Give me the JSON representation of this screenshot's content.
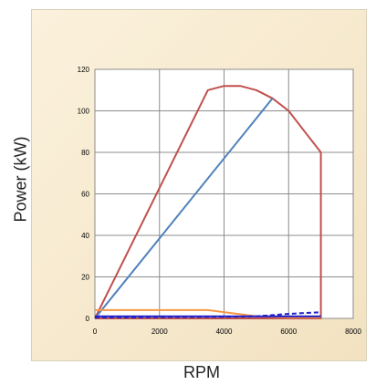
{
  "chart_data": {
    "type": "line",
    "title": "",
    "xlabel": "RPM",
    "ylabel": "Power (kW)",
    "xlim": [
      0,
      8000
    ],
    "ylim": [
      0,
      120
    ],
    "xticks": [
      0,
      2000,
      4000,
      6000,
      8000
    ],
    "yticks": [
      0,
      20,
      40,
      60,
      80,
      100,
      120
    ],
    "grid": true,
    "legend": "none",
    "series": [
      {
        "color": "#c0504d",
        "style": "solid",
        "x": [
          0,
          3500,
          4000,
          4500,
          5000,
          5500,
          6000,
          6500,
          7000,
          7000,
          0
        ],
        "y": [
          0,
          110,
          112,
          112,
          110,
          106,
          100,
          90,
          80,
          0,
          0
        ]
      },
      {
        "color": "#4f81bd",
        "style": "solid",
        "x": [
          0,
          5500
        ],
        "y": [
          0,
          106
        ]
      },
      {
        "color": "#f79646",
        "style": "solid",
        "x": [
          0,
          3500,
          4500,
          5000,
          6000,
          7000
        ],
        "y": [
          4,
          4,
          2,
          1,
          0.5,
          0.5
        ]
      },
      {
        "color": "#1f1fcc",
        "style": "dashed",
        "x": [
          0,
          1000,
          2000,
          3000,
          4000,
          5000,
          5500,
          6000,
          6500,
          7000
        ],
        "y": [
          0.5,
          0.5,
          0.6,
          0.7,
          0.8,
          1.0,
          1.6,
          2.2,
          2.6,
          3
        ]
      },
      {
        "color": "#1f1fcc",
        "style": "solid",
        "x": [
          0,
          2000,
          4000,
          6000,
          7000
        ],
        "y": [
          1,
          1,
          1,
          1,
          1
        ]
      }
    ]
  }
}
